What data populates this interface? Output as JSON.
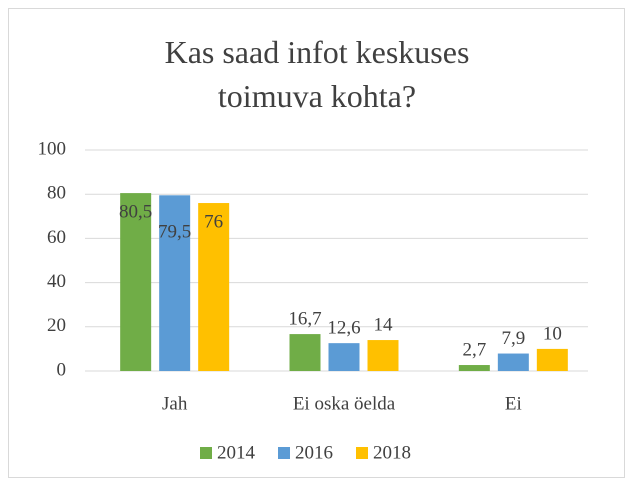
{
  "chart_data": {
    "type": "bar",
    "title": "Kas saad infot keskuses toimuva kohta?",
    "categories": [
      "Jah",
      "Ei oska öelda",
      "Ei"
    ],
    "series": [
      {
        "name": "2014",
        "color": "#70ad47",
        "values": [
          80.5,
          16.7,
          2.7
        ],
        "value_labels": [
          "80,5",
          "16,7",
          "2,7"
        ]
      },
      {
        "name": "2016",
        "color": "#5b9bd5",
        "values": [
          79.5,
          12.6,
          7.9
        ],
        "value_labels": [
          "79,5",
          "12,6",
          "7,9"
        ]
      },
      {
        "name": "2018",
        "color": "#ffc000",
        "values": [
          76,
          14,
          10
        ]
      }
    ],
    "ylim": [
      0,
      100
    ],
    "yticks": [
      0,
      20,
      40,
      60,
      80,
      100
    ],
    "grid": true,
    "legend": "bottom"
  }
}
